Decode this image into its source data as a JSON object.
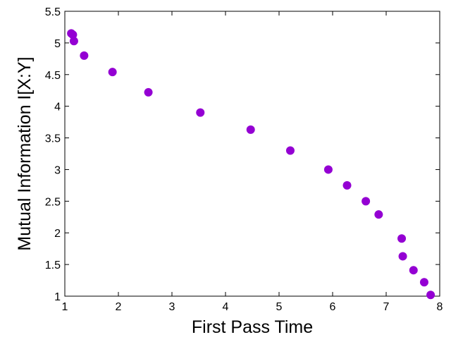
{
  "chart_data": {
    "type": "scatter",
    "title": "",
    "xlabel": "First Pass Time",
    "ylabel": "Mutual Information I[X:Y]",
    "xlim": [
      1,
      8
    ],
    "ylim": [
      1,
      5.5
    ],
    "xticks": [
      1,
      2,
      3,
      4,
      5,
      6,
      7,
      8
    ],
    "xtick_labels": [
      "1",
      "2",
      "3",
      "4",
      "5",
      "6",
      "7",
      "8"
    ],
    "yticks": [
      1,
      1.5,
      2,
      2.5,
      3,
      3.5,
      4,
      4.5,
      5,
      5.5
    ],
    "ytick_labels": [
      "1",
      "1.5",
      "2",
      "2.5",
      "3",
      "3.5",
      "4",
      "4.5",
      "5",
      "5.5"
    ],
    "grid": false,
    "marker_color": "#9400D3",
    "series": [
      {
        "x": [
          1.12,
          1.15,
          1.17,
          1.36,
          1.89,
          2.56,
          3.53,
          4.47,
          5.21,
          5.92,
          6.27,
          6.62,
          6.86,
          7.29,
          7.31,
          7.51,
          7.71,
          7.83
        ],
        "y": [
          5.15,
          5.13,
          5.03,
          4.8,
          4.54,
          4.22,
          3.9,
          3.63,
          3.3,
          3.0,
          2.75,
          2.5,
          2.29,
          1.91,
          1.63,
          1.41,
          1.22,
          1.02
        ]
      }
    ]
  }
}
